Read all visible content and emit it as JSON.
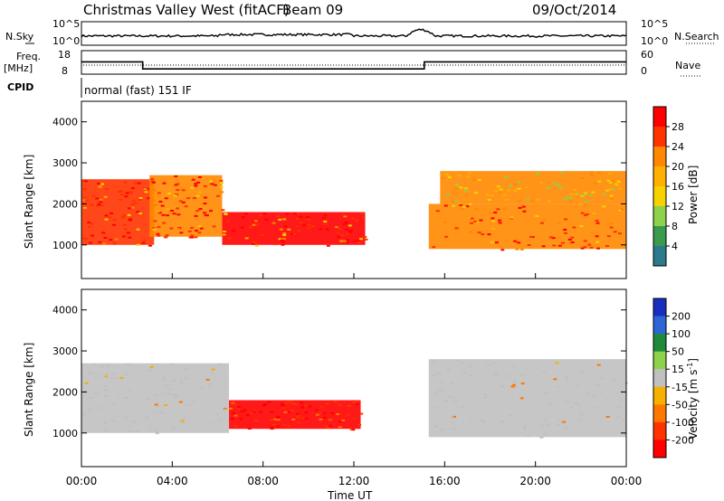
{
  "header": {
    "title": "Christmas Valley West (fitACF)",
    "beam": "Beam 09",
    "date": "09/Oct/2014"
  },
  "noise_panel": {
    "left_label": "N.Sky",
    "left_ticks": [
      "10^5",
      "10^0"
    ],
    "right_label": "N.Search",
    "right_ticks": [
      "10^5",
      "10^0"
    ]
  },
  "freq_panel": {
    "left_label_1": "Freq.",
    "left_label_2": "[MHz]",
    "left_ticks": [
      "18",
      "8"
    ],
    "right_label": "Nave",
    "right_ticks": [
      "60",
      "0"
    ]
  },
  "cpid": {
    "label": "CPID",
    "mode": "normal (fast) 151 IF"
  },
  "power_scale": {
    "title": "Power [dB]",
    "ticks": [
      "28",
      "24",
      "20",
      "16",
      "12",
      "8",
      "4"
    ],
    "colors": [
      "#ff0000",
      "#ff3300",
      "#ff8800",
      "#ffb000",
      "#f5d200",
      "#8ed14a",
      "#3a9a4e",
      "#2c7a8a",
      "#1c4fb8",
      "#0000ee"
    ]
  },
  "velocity_scale": {
    "title_main": "Velocity [m s",
    "title_sup": "-1",
    "title_end": "]",
    "ticks": [
      "200",
      "100",
      "50",
      "15",
      "-15",
      "-50",
      "-100",
      "-200"
    ],
    "colors": [
      "#1a2fbf",
      "#2f66d6",
      "#1f8a3a",
      "#8ed14a",
      "#c0c0c0",
      "#f5b000",
      "#ff7700",
      "#ff3300",
      "#ff0000"
    ]
  },
  "chart_data": {
    "type": "heatmap",
    "xlabel": "Time UT",
    "ylabel": "Slant Range [km]",
    "x_ticks": [
      "00:00",
      "04:00",
      "08:00",
      "12:00",
      "16:00",
      "20:00",
      "00:00"
    ],
    "xlim_hours": [
      0,
      24
    ],
    "ylim_km": [
      180,
      4500
    ],
    "y_ticks": [
      1000,
      2000,
      3000,
      4000
    ],
    "freq_mhz": [
      {
        "t_start": 0,
        "t_end": 2.7,
        "value": 14
      },
      {
        "t_start": 2.7,
        "t_end": 15.1,
        "value": 11
      },
      {
        "t_start": 15.1,
        "t_end": 24,
        "value": 14
      }
    ],
    "power_echo_regions": [
      {
        "t_start": 0,
        "t_end": 3.2,
        "r_min": 1000,
        "r_max": 2600,
        "level": "high"
      },
      {
        "t_start": 3.0,
        "t_end": 6.2,
        "r_min": 1200,
        "r_max": 2700,
        "level": "high"
      },
      {
        "t_start": 6.2,
        "t_end": 12.5,
        "r_min": 1000,
        "r_max": 1800,
        "level": "high"
      },
      {
        "t_start": 15.3,
        "t_end": 24,
        "r_min": 900,
        "r_max": 2000,
        "level": "high"
      },
      {
        "t_start": 15.8,
        "t_end": 24,
        "r_min": 2000,
        "r_max": 2800,
        "level": "medium"
      }
    ],
    "velocity_echo_regions": [
      {
        "t_start": 0,
        "t_end": 6.5,
        "r_min": 1000,
        "r_max": 2700,
        "velocity": "-15..15"
      },
      {
        "t_start": 6.5,
        "t_end": 12.3,
        "r_min": 1100,
        "r_max": 1800,
        "velocity": "-200"
      },
      {
        "t_start": 15.3,
        "t_end": 24,
        "r_min": 900,
        "r_max": 2800,
        "velocity": "-15..15"
      }
    ]
  }
}
